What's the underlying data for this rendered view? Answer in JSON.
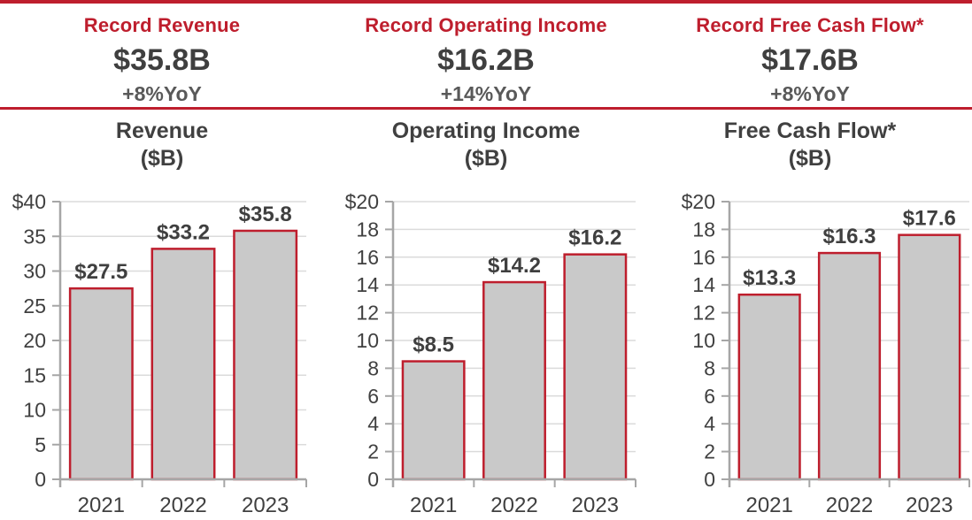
{
  "colors": {
    "accent_red": "#BE1E2D",
    "text_dark": "#404040",
    "text_medium": "#595959",
    "bar_fill": "#C9C9C9",
    "gridline": "#DBDBDB",
    "axis": "#A6A6A6"
  },
  "header": {
    "cards": [
      {
        "title": "Record Revenue",
        "value": "$35.8B",
        "yoy": "+8%YoY"
      },
      {
        "title": "Record Operating Income",
        "value": "$16.2B",
        "yoy": "+14%YoY"
      },
      {
        "title": "Record Free Cash Flow*",
        "value": "$17.6B",
        "yoy": "+8%YoY"
      }
    ]
  },
  "chart_data": [
    {
      "type": "bar",
      "title": "Revenue",
      "subtitle": "($B)",
      "categories": [
        "2021",
        "2022",
        "2023"
      ],
      "values": [
        27.5,
        33.2,
        35.8
      ],
      "value_labels": [
        "$27.5",
        "$33.2",
        "$35.8"
      ],
      "xlabel": "",
      "ylabel": "",
      "ylim": [
        0,
        40
      ],
      "grid": true,
      "legend": "none",
      "yticks": [
        {
          "value": 40,
          "label": "$40"
        },
        {
          "value": 35,
          "label": "35"
        },
        {
          "value": 30,
          "label": "30"
        },
        {
          "value": 25,
          "label": "25"
        },
        {
          "value": 20,
          "label": "20"
        },
        {
          "value": 15,
          "label": "15"
        },
        {
          "value": 10,
          "label": "10"
        },
        {
          "value": 5,
          "label": "5"
        },
        {
          "value": 0,
          "label": "0"
        }
      ]
    },
    {
      "type": "bar",
      "title": "Operating Income",
      "subtitle": "($B)",
      "categories": [
        "2021",
        "2022",
        "2023"
      ],
      "values": [
        8.5,
        14.2,
        16.2
      ],
      "value_labels": [
        "$8.5",
        "$14.2",
        "$16.2"
      ],
      "xlabel": "",
      "ylabel": "",
      "ylim": [
        0,
        20
      ],
      "grid": true,
      "legend": "none",
      "yticks": [
        {
          "value": 20,
          "label": "$20"
        },
        {
          "value": 18,
          "label": "18"
        },
        {
          "value": 16,
          "label": "16"
        },
        {
          "value": 14,
          "label": "14"
        },
        {
          "value": 12,
          "label": "12"
        },
        {
          "value": 10,
          "label": "10"
        },
        {
          "value": 8,
          "label": "8"
        },
        {
          "value": 6,
          "label": "6"
        },
        {
          "value": 4,
          "label": "4"
        },
        {
          "value": 2,
          "label": "2"
        },
        {
          "value": 0,
          "label": "0"
        }
      ]
    },
    {
      "type": "bar",
      "title": "Free Cash Flow*",
      "subtitle": "($B)",
      "categories": [
        "2021",
        "2022",
        "2023"
      ],
      "values": [
        13.3,
        16.3,
        17.6
      ],
      "value_labels": [
        "$13.3",
        "$16.3",
        "$17.6"
      ],
      "xlabel": "",
      "ylabel": "",
      "ylim": [
        0,
        20
      ],
      "grid": true,
      "legend": "none",
      "yticks": [
        {
          "value": 20,
          "label": "$20"
        },
        {
          "value": 18,
          "label": "18"
        },
        {
          "value": 16,
          "label": "16"
        },
        {
          "value": 14,
          "label": "14"
        },
        {
          "value": 12,
          "label": "12"
        },
        {
          "value": 10,
          "label": "10"
        },
        {
          "value": 8,
          "label": "8"
        },
        {
          "value": 6,
          "label": "6"
        },
        {
          "value": 4,
          "label": "4"
        },
        {
          "value": 2,
          "label": "2"
        },
        {
          "value": 0,
          "label": "0"
        }
      ]
    }
  ]
}
